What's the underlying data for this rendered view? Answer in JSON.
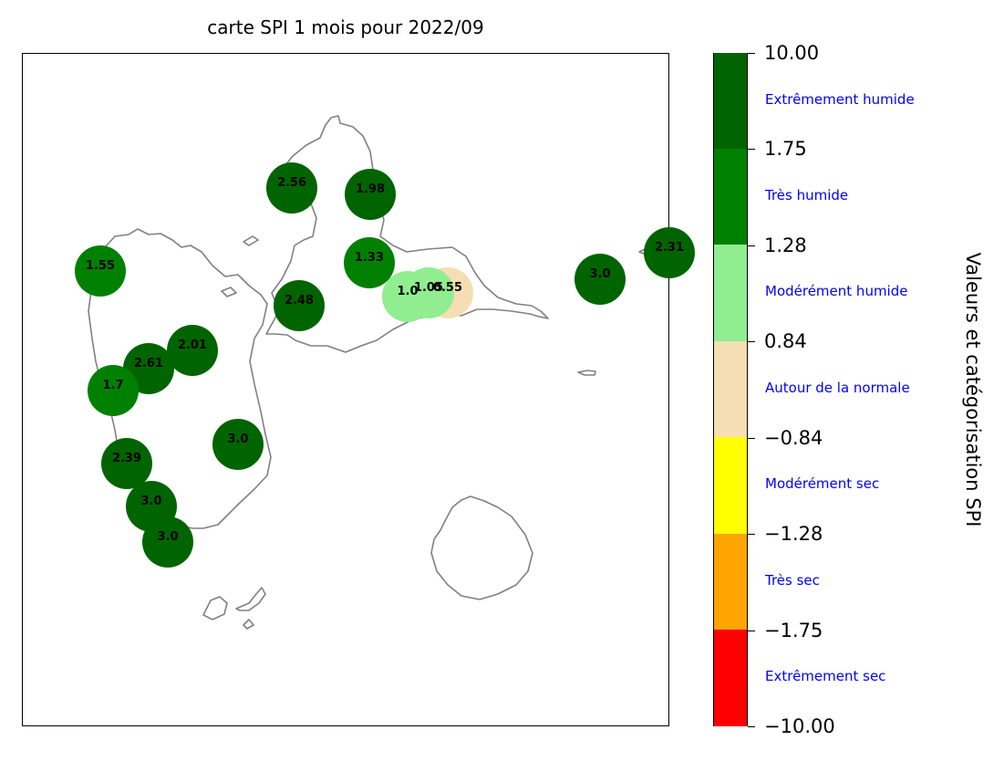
{
  "title": "carte SPI 1 mois pour 2022/09",
  "colorbar": {
    "axis_title": "Valeurs et catégorisation SPI",
    "ticks": [
      "10.00",
      "1.75",
      "1.28",
      "0.84",
      "−0.84",
      "−1.28",
      "−1.75",
      "−10.00"
    ],
    "categories": [
      {
        "label": "Extrêmement humide",
        "color": "#006400"
      },
      {
        "label": "Très humide",
        "color": "#008000"
      },
      {
        "label": "Modérément humide",
        "color": "#90ee90"
      },
      {
        "label": "Autour de la normale",
        "color": "#f5deb3"
      },
      {
        "label": "Modérément sec",
        "color": "#ffff00"
      },
      {
        "label": "Très sec",
        "color": "#ffa500"
      },
      {
        "label": "Extrêmement sec",
        "color": "#ff0000"
      }
    ]
  },
  "coastline_color": "#808080",
  "stations": [
    {
      "value": "2.56",
      "category": 0
    },
    {
      "value": "1.98",
      "category": 0
    },
    {
      "value": "2.31",
      "category": 0
    },
    {
      "value": "3.0",
      "category": 0
    },
    {
      "value": "1.33",
      "category": 1
    },
    {
      "value": "1.55",
      "category": 1
    },
    {
      "value": "2.48",
      "category": 0
    },
    {
      "value": "0.55",
      "category": 3
    },
    {
      "value": "1.05",
      "category": 2
    },
    {
      "value": "1.0",
      "category": 2
    },
    {
      "value": "2.01",
      "category": 0
    },
    {
      "value": "2.61",
      "category": 0
    },
    {
      "value": "1.7",
      "category": 1
    },
    {
      "value": "3.0",
      "category": 0
    },
    {
      "value": "2.39",
      "category": 0
    },
    {
      "value": "3.0",
      "category": 0
    },
    {
      "value": "3.0",
      "category": 0
    }
  ]
}
